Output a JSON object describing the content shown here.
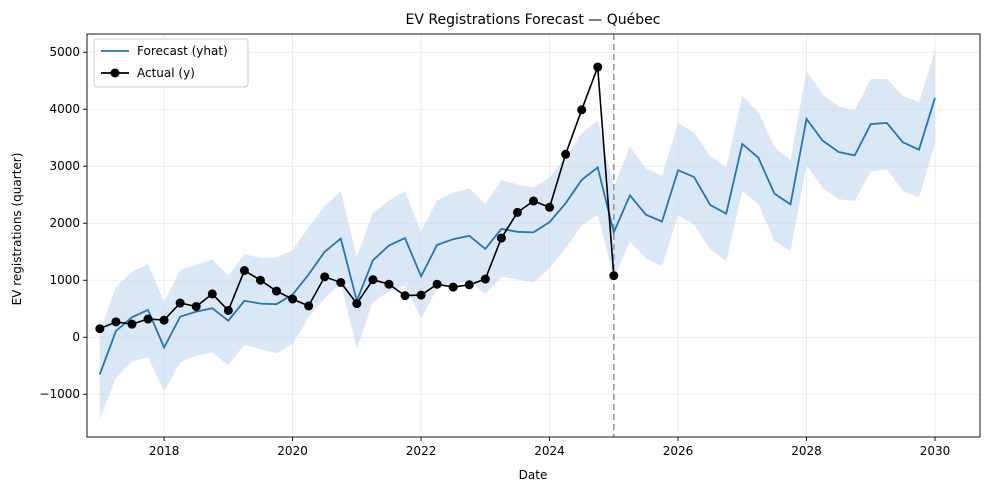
{
  "chart_data": {
    "type": "line",
    "title": "EV Registrations Forecast — Québec",
    "xlabel": "Date",
    "ylabel": "EV registrations (quarter)",
    "xlim": [
      2016.8,
      2030.7
    ],
    "ylim": [
      -1750,
      5320
    ],
    "x_ticks": [
      2018,
      2020,
      2022,
      2024,
      2026,
      2028,
      2030
    ],
    "y_ticks": [
      -1000,
      0,
      1000,
      2000,
      3000,
      4000,
      5000
    ],
    "y_tick_labels": [
      "−1000",
      "0",
      "1000",
      "2000",
      "3000",
      "4000",
      "5000"
    ],
    "grid": true,
    "legend_position": "top-left",
    "cutoff_x": 2025.0,
    "colors": {
      "forecast": "#1f77b4",
      "band": "#c6dbef",
      "actual": "#000000",
      "cutoff": "#999999"
    },
    "forecast": {
      "name": "Forecast (yhat)",
      "x": [
        2017.0,
        2017.25,
        2017.5,
        2017.75,
        2018.0,
        2018.25,
        2018.5,
        2018.75,
        2019.0,
        2019.25,
        2019.5,
        2019.75,
        2020.0,
        2020.25,
        2020.5,
        2020.75,
        2021.0,
        2021.25,
        2021.5,
        2021.75,
        2022.0,
        2022.25,
        2022.5,
        2022.75,
        2023.0,
        2023.25,
        2023.5,
        2023.75,
        2024.0,
        2024.25,
        2024.5,
        2024.75,
        2025.0,
        2025.25,
        2025.5,
        2025.75,
        2026.0,
        2026.25,
        2026.5,
        2026.75,
        2027.0,
        2027.25,
        2027.5,
        2027.75,
        2028.0,
        2028.25,
        2028.5,
        2028.75,
        2029.0,
        2029.25,
        2029.5,
        2029.75,
        2030.0
      ],
      "y": [
        -650,
        110,
        350,
        480,
        -180,
        360,
        450,
        510,
        290,
        640,
        590,
        580,
        750,
        1100,
        1500,
        1730,
        640,
        1350,
        1610,
        1740,
        1070,
        1620,
        1720,
        1780,
        1550,
        1900,
        1850,
        1840,
        2020,
        2350,
        2760,
        2980,
        1840,
        2490,
        2150,
        2030,
        2930,
        2810,
        2320,
        2170,
        3390,
        3150,
        2520,
        2330,
        3830,
        3450,
        3250,
        3190,
        3740,
        3760,
        3420,
        3290,
        4200
      ],
      "lower": [
        -1430,
        -720,
        -420,
        -350,
        -950,
        -440,
        -320,
        -270,
        -490,
        -130,
        -210,
        -280,
        -120,
        350,
        680,
        960,
        -200,
        620,
        800,
        900,
        330,
        850,
        930,
        990,
        760,
        1060,
        1020,
        960,
        1210,
        1560,
        1960,
        2150,
        1030,
        1680,
        1380,
        1250,
        2150,
        1980,
        1540,
        1330,
        2570,
        2330,
        1690,
        1510,
        3020,
        2620,
        2420,
        2390,
        2910,
        2950,
        2570,
        2450,
        3400
      ],
      "upper": [
        100,
        880,
        1150,
        1280,
        620,
        1180,
        1270,
        1360,
        1080,
        1460,
        1390,
        1400,
        1530,
        1930,
        2300,
        2560,
        1410,
        2180,
        2400,
        2560,
        1850,
        2400,
        2540,
        2610,
        2340,
        2760,
        2680,
        2630,
        2810,
        3170,
        3580,
        3800,
        2640,
        3340,
        2960,
        2830,
        3760,
        3590,
        3180,
        2980,
        4230,
        3950,
        3340,
        3110,
        4670,
        4260,
        4050,
        3980,
        4530,
        4530,
        4240,
        4120,
        5030
      ]
    },
    "actual": {
      "name": "Actual (y)",
      "x": [
        2017.0,
        2017.25,
        2017.5,
        2017.75,
        2018.0,
        2018.25,
        2018.5,
        2018.75,
        2019.0,
        2019.25,
        2019.5,
        2019.75,
        2020.0,
        2020.25,
        2020.5,
        2020.75,
        2021.0,
        2021.25,
        2021.5,
        2021.75,
        2022.0,
        2022.25,
        2022.5,
        2022.75,
        2023.0,
        2023.25,
        2023.5,
        2023.75,
        2024.0,
        2024.25,
        2024.5,
        2024.75,
        2025.0
      ],
      "y": [
        150,
        270,
        230,
        320,
        300,
        600,
        540,
        760,
        470,
        1170,
        1000,
        810,
        670,
        550,
        1060,
        960,
        590,
        1010,
        930,
        730,
        740,
        930,
        880,
        920,
        1020,
        1740,
        2190,
        2390,
        2280,
        3210,
        3990,
        4740,
        1080
      ]
    }
  }
}
